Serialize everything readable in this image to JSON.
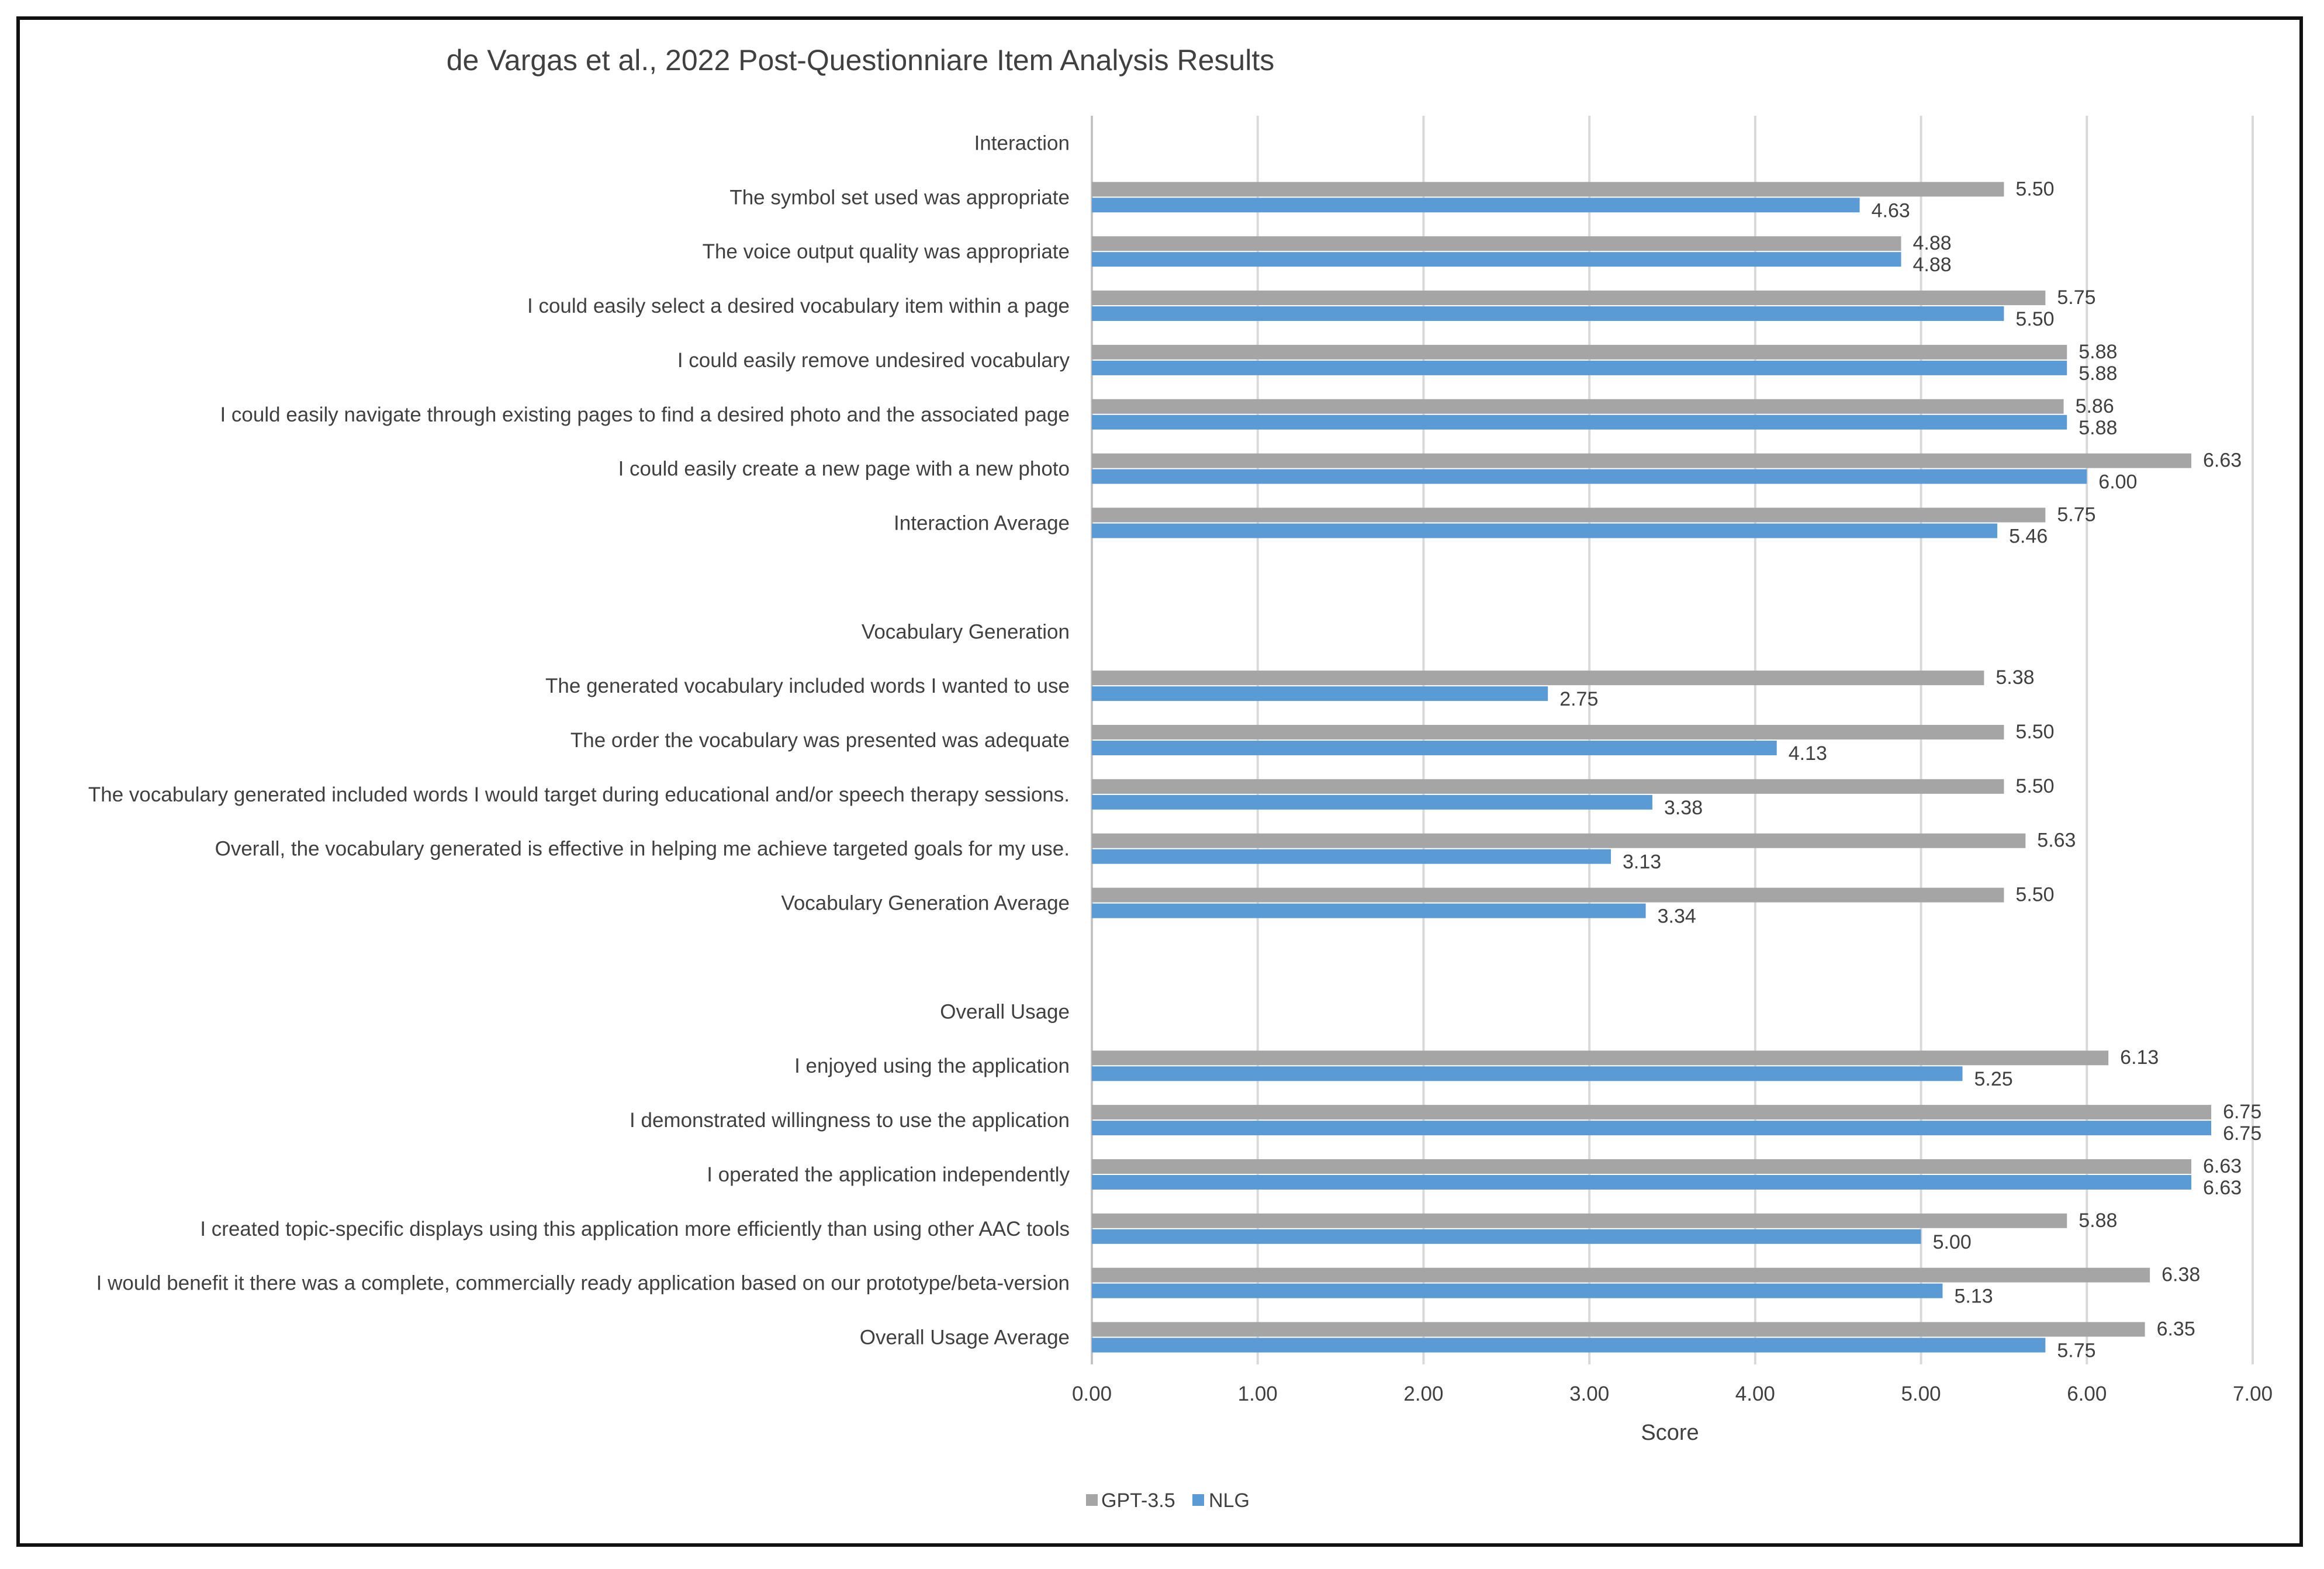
{
  "chart_data": {
    "type": "bar",
    "orientation": "horizontal",
    "title": "de Vargas et al., 2022 Post-Questionniare Item Analysis Results",
    "xlabel": "Score",
    "ylabel": "",
    "xlim": [
      0,
      7
    ],
    "xticks": [
      "0.00",
      "1.00",
      "2.00",
      "3.00",
      "4.00",
      "5.00",
      "6.00",
      "7.00"
    ],
    "grid": true,
    "legend_position": "bottom",
    "categories": [
      "Interaction",
      "The symbol set used was appropriate",
      "The voice output quality was appropriate",
      "I could easily select a desired vocabulary item within a page",
      "I could easily remove undesired vocabulary",
      "I could easily navigate through existing pages to find a desired photo and the associated page",
      "I could easily create a new page with a new photo",
      "Interaction Average",
      "",
      "Vocabulary Generation",
      "The generated vocabulary included words I wanted to use",
      "The order the vocabulary was presented was adequate",
      "The vocabulary generated included words I would target during educational and/or speech therapy sessions.",
      "Overall, the vocabulary generated is effective in helping me achieve targeted goals for my use.",
      "Vocabulary Generation Average",
      "",
      "Overall Usage",
      "I enjoyed using the application",
      "I demonstrated willingness to use the application",
      "I operated the application independently",
      "I created topic-specific displays using this application more efficiently than using other AAC tools",
      "I would benefit it there was a complete, commercially ready application based on our prototype/beta-version",
      "Overall Usage Average"
    ],
    "series": [
      {
        "name": "GPT-3.5",
        "color": "#a5a5a5",
        "values": [
          null,
          5.5,
          4.88,
          5.75,
          5.88,
          5.86,
          6.63,
          5.75,
          null,
          null,
          5.38,
          5.5,
          5.5,
          5.63,
          5.5,
          null,
          null,
          6.13,
          6.75,
          6.63,
          5.88,
          6.38,
          6.35
        ],
        "labels": [
          null,
          "5.50",
          "4.88",
          "5.75",
          "5.88",
          "5.86",
          "6.63",
          "5.75",
          null,
          null,
          "5.38",
          "5.50",
          "5.50",
          "5.63",
          "5.50",
          null,
          null,
          "6.13",
          "6.75",
          "6.63",
          "5.88",
          "6.38",
          "6.35"
        ]
      },
      {
        "name": "NLG",
        "color": "#5b9bd5",
        "values": [
          null,
          4.63,
          4.88,
          5.5,
          5.88,
          5.88,
          6.0,
          5.46,
          null,
          null,
          2.75,
          4.13,
          3.38,
          3.13,
          3.34,
          null,
          null,
          5.25,
          6.75,
          6.63,
          5.0,
          5.13,
          5.75
        ],
        "labels": [
          null,
          "4.63",
          "4.88",
          "5.50",
          "5.88",
          "5.88",
          "6.00",
          "5.46",
          null,
          null,
          "2.75",
          "4.13",
          "3.38",
          "3.13",
          "3.34",
          null,
          null,
          "5.25",
          "6.75",
          "6.63",
          "5.00",
          "5.13",
          "5.75"
        ]
      }
    ]
  }
}
